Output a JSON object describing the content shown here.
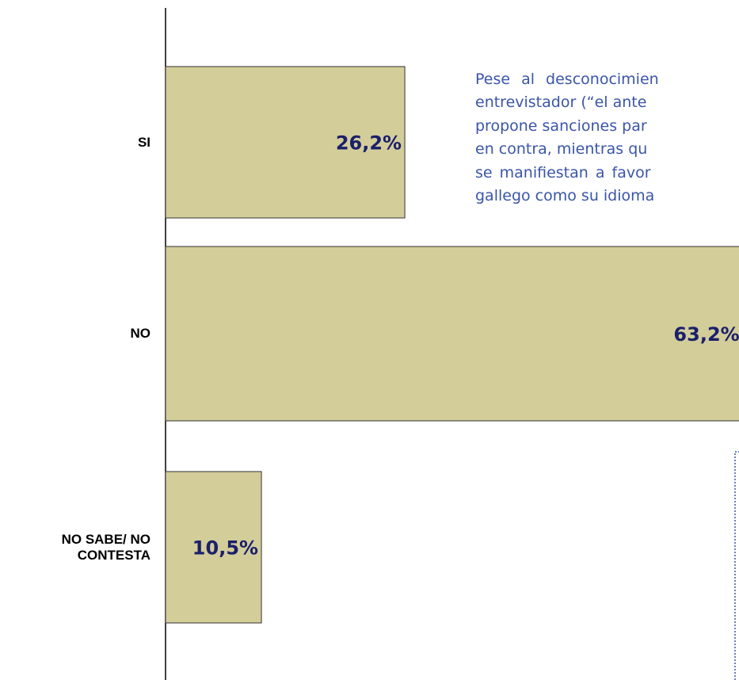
{
  "chart_data": {
    "type": "bar",
    "orientation": "horizontal",
    "categories": [
      "SI",
      "NO",
      "NO SABE/ NO CONTESTA"
    ],
    "values": [
      26.2,
      63.2,
      10.5
    ],
    "value_labels": [
      "26,2%",
      "63,2%",
      "10,5%"
    ],
    "color": "#d3cd9a"
  },
  "text_lines": [
    "Pese al desconocimien",
    "entrevistador (“el ante",
    "propone sanciones par",
    "en contra, mientras qu",
    "se manifiestan a favor",
    "gallego como su idioma"
  ]
}
